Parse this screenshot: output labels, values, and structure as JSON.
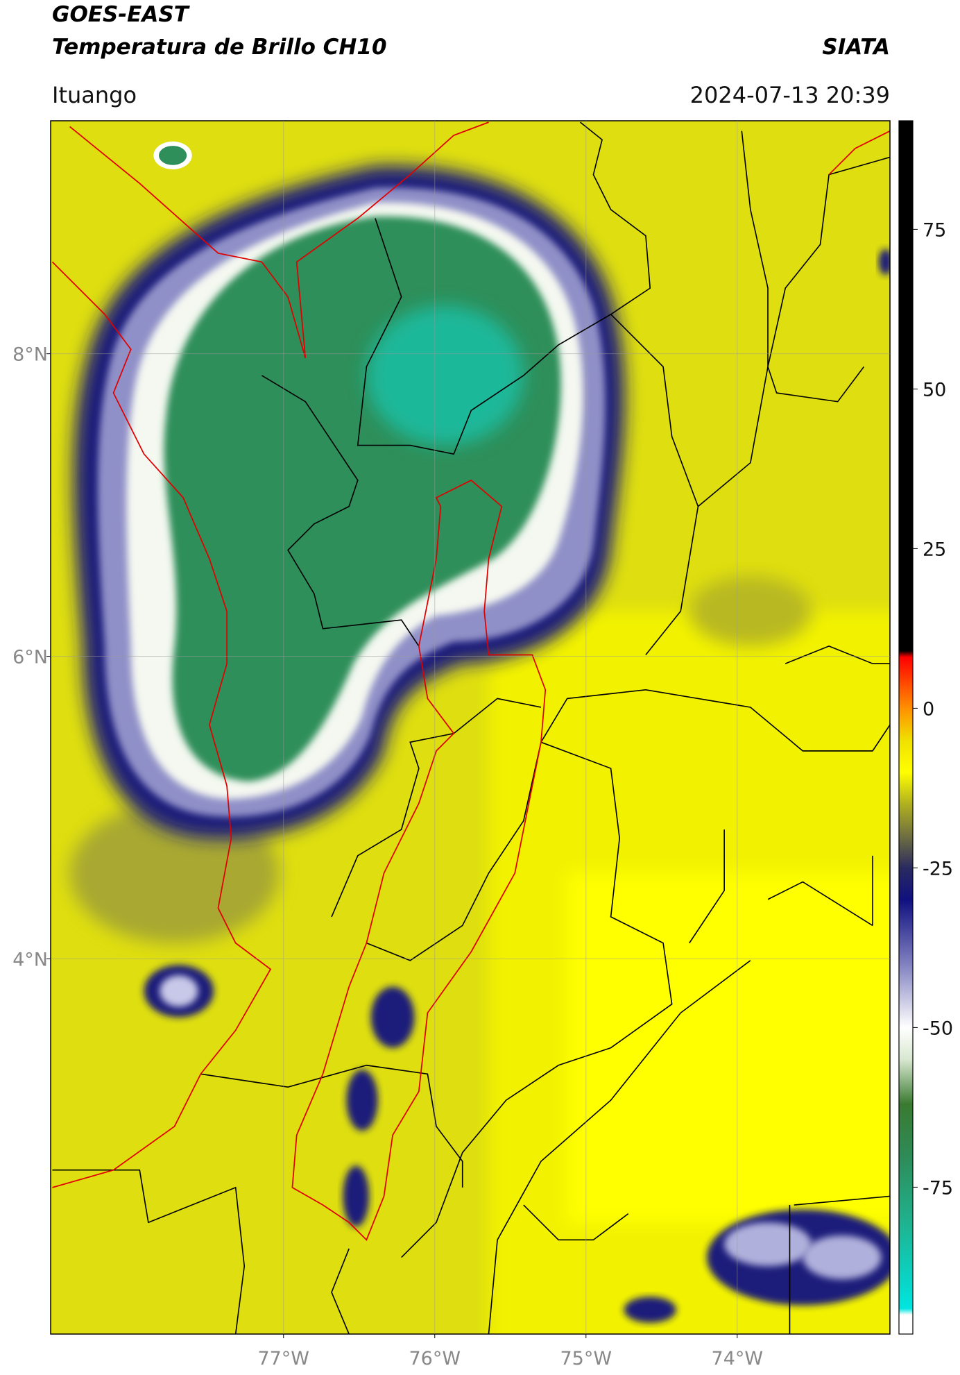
{
  "header": {
    "title": "GOES-EAST",
    "subtitle": "Temperatura de Brillo CH10",
    "source": "SIATA",
    "location": "Ituango",
    "timestamp": "2024-07-13 20:39"
  },
  "map": {
    "xlim": [
      -78.54,
      -72.99
    ],
    "ylim": [
      1.52,
      9.54
    ],
    "xticks": [
      {
        "value": -77,
        "label": "77°W"
      },
      {
        "value": -76,
        "label": "76°W"
      },
      {
        "value": -75,
        "label": "75°W"
      },
      {
        "value": -74,
        "label": "74°W"
      }
    ],
    "yticks": [
      {
        "value": 8,
        "label": "8°N"
      },
      {
        "value": 6,
        "label": "6°N"
      },
      {
        "value": 4,
        "label": "4°N"
      }
    ],
    "grid": true
  },
  "colorbar": {
    "lim": [
      -98,
      92
    ],
    "ticks": [
      75,
      50,
      25,
      0,
      -25,
      -50,
      -75
    ],
    "colors": [
      {
        "value": -98,
        "color": "#ffffff"
      },
      {
        "value": -95,
        "color": "#ffffff"
      },
      {
        "value": -94,
        "color": "#00e5e0"
      },
      {
        "value": -80,
        "color": "#20b08c"
      },
      {
        "value": -70,
        "color": "#2e8b57"
      },
      {
        "value": -62,
        "color": "#3a7a30"
      },
      {
        "value": -55,
        "color": "#d8e8d0"
      },
      {
        "value": -50,
        "color": "#ffffff"
      },
      {
        "value": -40,
        "color": "#8080c0"
      },
      {
        "value": -30,
        "color": "#101080"
      },
      {
        "value": -25,
        "color": "#2a2a60"
      },
      {
        "value": -20,
        "color": "#707040"
      },
      {
        "value": -15,
        "color": "#b0b020"
      },
      {
        "value": -10,
        "color": "#ffff00"
      },
      {
        "value": -5,
        "color": "#f0e000"
      },
      {
        "value": 0,
        "color": "#ff9000"
      },
      {
        "value": 8,
        "color": "#ff0000"
      },
      {
        "value": 9,
        "color": "#000000"
      },
      {
        "value": 92,
        "color": "#000000"
      }
    ]
  }
}
